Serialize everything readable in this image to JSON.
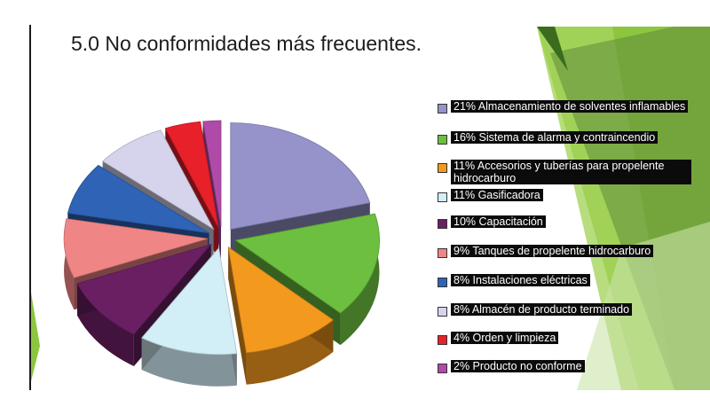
{
  "slide": {
    "title": "5.0 No conformidades más frecuentes."
  },
  "chart_data": {
    "type": "pie",
    "style": "3d-exploded",
    "legend_position": "right",
    "slices": [
      {
        "label": "21% Almacenamiento de solventes inflamables",
        "value": 21,
        "color": "#9593c9"
      },
      {
        "label": "16% Sistema de alarma y contraincendio",
        "value": 16,
        "color": "#6cbf3f"
      },
      {
        "label": "11% Accesorios y tuberías para propelente hidrocarburo",
        "value": 11,
        "color": "#f39a1e"
      },
      {
        "label": "11% Gasificadora",
        "value": 11,
        "color": "#d2eef6"
      },
      {
        "label": "10% Capacitación",
        "value": 10,
        "color": "#6a1f63"
      },
      {
        "label": "9% Tanques de propelente hidrocarburo",
        "value": 9,
        "color": "#f08585"
      },
      {
        "label": "8% Instalaciones eléctricas",
        "value": 8,
        "color": "#2f63b6"
      },
      {
        "label": "8% Almacén de producto terminado",
        "value": 8,
        "color": "#d6d4ec"
      },
      {
        "label": "4% Orden y limpieza",
        "value": 4,
        "color": "#e8202a"
      },
      {
        "label": "2% Producto no conforme",
        "value": 2,
        "color": "#b04aa8"
      }
    ]
  }
}
